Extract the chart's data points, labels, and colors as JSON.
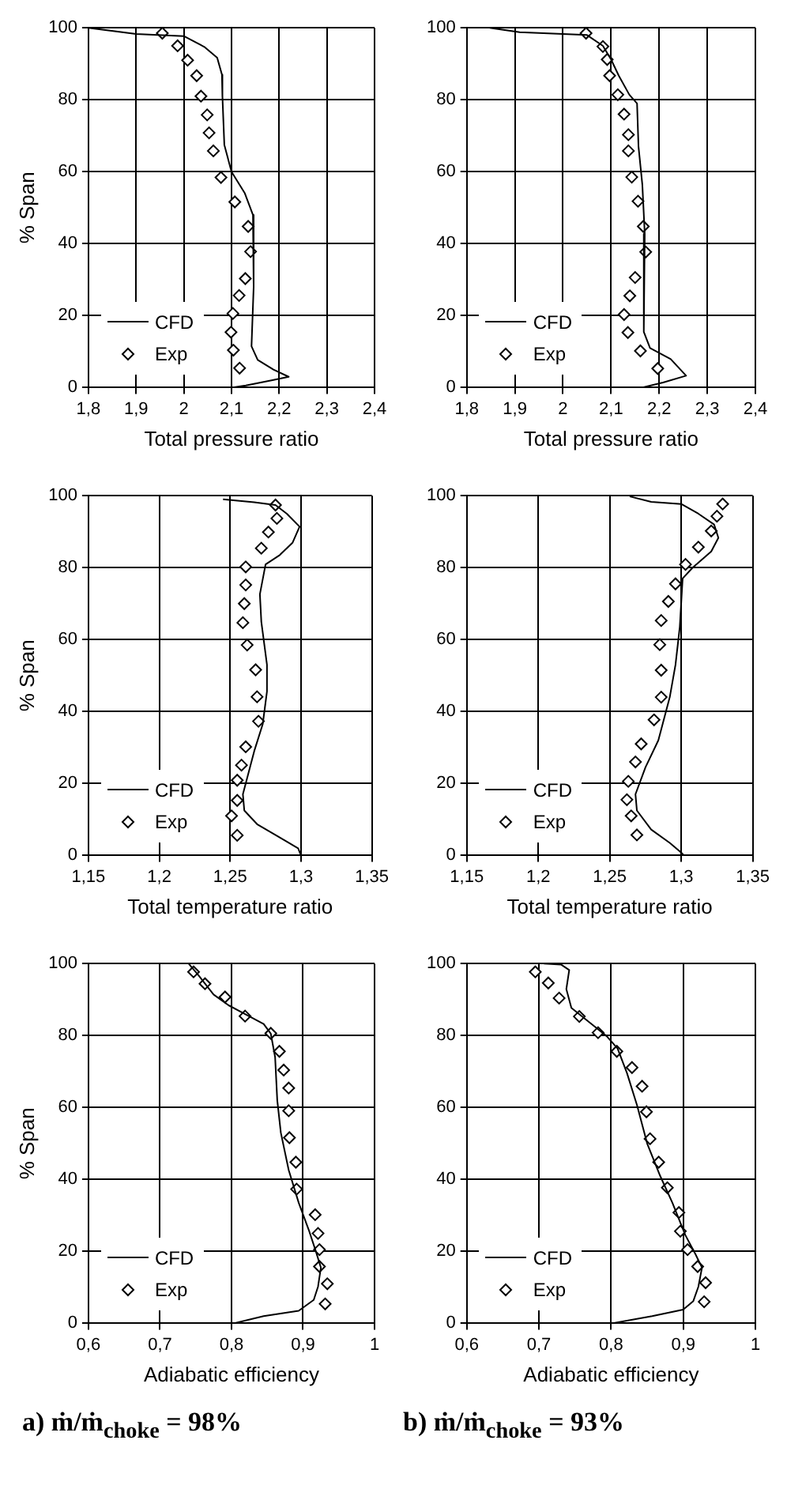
{
  "chart_data": [
    {
      "type": "line",
      "xlabel": "Total pressure ratio",
      "ylabel": "% Span",
      "xlim": [
        1.8,
        2.4
      ],
      "xticks": [
        {
          "value": 1.8,
          "label": "1,8"
        },
        {
          "value": 1.9,
          "label": "1,9"
        },
        {
          "value": 2,
          "label": "2"
        },
        {
          "value": 2.1,
          "label": "2,1"
        },
        {
          "value": 2.2,
          "label": "2,2"
        },
        {
          "value": 2.3,
          "label": "2,3"
        },
        {
          "value": 2.4,
          "label": "2,4"
        }
      ],
      "ylim": [
        0,
        100
      ],
      "yticks": [
        0,
        20,
        40,
        60,
        80,
        100
      ],
      "grid": true,
      "legend": "bottom left",
      "series": [
        {
          "name": "CFD",
          "type": "line",
          "marker": "none",
          "color": "#000000",
          "x": [
            1.8,
            1.9,
            2.0,
            2.043,
            2.07,
            2.08,
            2.081,
            2.085,
            2.1,
            2.128,
            2.145,
            2.148,
            2.145,
            2.142,
            2.155,
            2.188,
            2.22,
            2.184,
            2.13,
            2.1
          ],
          "values": [
            100,
            98.3,
            97.7,
            94.7,
            91.7,
            87,
            81,
            67.5,
            60,
            54,
            48,
            38.7,
            28,
            11.5,
            7.7,
            5,
            3,
            2,
            0.6,
            0
          ]
        },
        {
          "name": "Exp",
          "type": "scatter",
          "marker": "diamond",
          "color": "#000000",
          "x": [
            1.955,
            1.987,
            2.008,
            2.027,
            2.036,
            2.049,
            2.053,
            2.062,
            2.078,
            2.107,
            2.135,
            2.14,
            2.129,
            2.116,
            2.103,
            2.099,
            2.104,
            2.117
          ],
          "values": [
            98.5,
            95,
            91,
            86.7,
            81,
            75.8,
            70.8,
            65.8,
            58.4,
            51.6,
            44.8,
            37.8,
            30.3,
            25.6,
            20.6,
            15.4,
            10.4,
            5.4
          ]
        }
      ]
    },
    {
      "type": "line",
      "xlabel": "Total pressure ratio",
      "xlim": [
        1.8,
        2.4
      ],
      "xticks": [
        {
          "value": 1.8,
          "label": "1,8"
        },
        {
          "value": 1.9,
          "label": "1,9"
        },
        {
          "value": 2,
          "label": "2"
        },
        {
          "value": 2.1,
          "label": "2,1"
        },
        {
          "value": 2.2,
          "label": "2,2"
        },
        {
          "value": 2.3,
          "label": "2,3"
        },
        {
          "value": 2.4,
          "label": "2,4"
        }
      ],
      "ylim": [
        0,
        100
      ],
      "yticks": [
        0,
        20,
        40,
        60,
        80,
        100
      ],
      "grid": true,
      "legend": "bottom left",
      "series": [
        {
          "name": "CFD",
          "type": "line",
          "marker": "none",
          "color": "#000000",
          "x": [
            1.848,
            1.91,
            2.0,
            2.05,
            2.083,
            2.1,
            2.116,
            2.138,
            2.154,
            2.157,
            2.165,
            2.17,
            2.168,
            2.181,
            2.224,
            2.256,
            2.208,
            2.164
          ],
          "values": [
            100,
            98.8,
            98.3,
            98,
            95,
            91.2,
            86.7,
            81.4,
            79,
            67,
            56.4,
            42.7,
            15.5,
            11,
            7.9,
            3.3,
            1.4,
            0
          ]
        },
        {
          "name": "Exp",
          "type": "scatter",
          "marker": "diamond",
          "color": "#000000",
          "x": [
            2.048,
            2.083,
            2.092,
            2.097,
            2.114,
            2.127,
            2.136,
            2.136,
            2.143,
            2.156,
            2.167,
            2.172,
            2.15,
            2.139,
            2.127,
            2.135,
            2.161,
            2.197
          ],
          "values": [
            98.5,
            94.8,
            91.2,
            86.7,
            81.4,
            76,
            70.3,
            65.8,
            58.5,
            51.8,
            44.8,
            37.7,
            30.6,
            25.5,
            20.3,
            15.3,
            10.2,
            5.3
          ]
        }
      ]
    },
    {
      "type": "line",
      "xlabel": "Total temperature ratio",
      "ylabel": "% Span",
      "xlim": [
        1.15,
        1.35
      ],
      "xticks": [
        {
          "value": 1.15,
          "label": "1,15"
        },
        {
          "value": 1.2,
          "label": "1,2"
        },
        {
          "value": 1.25,
          "label": "1,25"
        },
        {
          "value": 1.3,
          "label": "1,3"
        },
        {
          "value": 1.35,
          "label": "1,35"
        }
      ],
      "ylim": [
        0,
        100
      ],
      "yticks": [
        0,
        20,
        40,
        60,
        80,
        100
      ],
      "grid": true,
      "legend": "bottom left",
      "series": [
        {
          "name": "CFD",
          "type": "line",
          "marker": "none",
          "color": "#000000",
          "x": [
            1.245,
            1.267,
            1.282,
            1.29,
            1.299,
            1.294,
            1.285,
            1.275,
            1.271,
            1.272,
            1.276,
            1.276,
            1.273,
            1.267,
            1.262,
            1.259,
            1.26,
            1.269,
            1.285,
            1.298,
            1.3
          ],
          "values": [
            99,
            98.2,
            97.4,
            95,
            91.4,
            86.9,
            83.5,
            80.9,
            72.6,
            65,
            53,
            45.6,
            36.5,
            29,
            21.5,
            17,
            12.5,
            8.7,
            5,
            2,
            0
          ]
        },
        {
          "name": "Exp",
          "type": "scatter",
          "marker": "diamond",
          "color": "#000000",
          "x": [
            1.282,
            1.283,
            1.277,
            1.272,
            1.261,
            1.261,
            1.26,
            1.259,
            1.262,
            1.268,
            1.269,
            1.27,
            1.261,
            1.258,
            1.255,
            1.255,
            1.251,
            1.255
          ],
          "values": [
            97.4,
            93.7,
            89.9,
            85.4,
            80.2,
            75.2,
            70,
            64.7,
            58.5,
            51.6,
            44.1,
            37.3,
            30.2,
            25.1,
            20.9,
            15.3,
            11,
            5.6
          ]
        }
      ]
    },
    {
      "type": "line",
      "xlabel": "Total temperature ratio",
      "xlim": [
        1.15,
        1.35
      ],
      "xticks": [
        {
          "value": 1.15,
          "label": "1,15"
        },
        {
          "value": 1.2,
          "label": "1,2"
        },
        {
          "value": 1.25,
          "label": "1,25"
        },
        {
          "value": 1.3,
          "label": "1,3"
        },
        {
          "value": 1.35,
          "label": "1,35"
        }
      ],
      "ylim": [
        0,
        100
      ],
      "yticks": [
        0,
        20,
        40,
        60,
        80,
        100
      ],
      "grid": true,
      "legend": "bottom left",
      "series": [
        {
          "name": "CFD",
          "type": "line",
          "marker": "none",
          "color": "#000000",
          "x": [
            1.264,
            1.279,
            1.3,
            1.312,
            1.323,
            1.326,
            1.321,
            1.308,
            1.301,
            1.299,
            1.296,
            1.292,
            1.284,
            1.275,
            1.268,
            1.269,
            1.279,
            1.292,
            1.3,
            1.302
          ],
          "values": [
            99.8,
            98.3,
            97.7,
            95,
            92,
            88.3,
            84.5,
            80,
            77,
            63.5,
            53,
            44,
            32,
            24.5,
            17,
            12.5,
            7.2,
            3.5,
            0.8,
            0
          ]
        },
        {
          "name": "Exp",
          "type": "scatter",
          "marker": "diamond",
          "color": "#000000",
          "x": [
            1.329,
            1.325,
            1.321,
            1.312,
            1.303,
            1.296,
            1.291,
            1.286,
            1.285,
            1.286,
            1.286,
            1.281,
            1.272,
            1.268,
            1.263,
            1.262,
            1.265,
            1.269
          ],
          "values": [
            97.7,
            94.3,
            90.2,
            85.7,
            80.9,
            75.5,
            70.6,
            65.3,
            58.6,
            51.5,
            44,
            37.7,
            31,
            26,
            20.6,
            15.5,
            11,
            5.7
          ]
        }
      ]
    },
    {
      "type": "line",
      "xlabel": "Adiabatic efficiency",
      "ylabel": "% Span",
      "xlim": [
        0.6,
        1
      ],
      "xticks": [
        {
          "value": 0.6,
          "label": "0,6"
        },
        {
          "value": 0.7,
          "label": "0,7"
        },
        {
          "value": 0.8,
          "label": "0,8"
        },
        {
          "value": 0.9,
          "label": "0,9"
        },
        {
          "value": 1,
          "label": "1"
        }
      ],
      "ylim": [
        0,
        100
      ],
      "yticks": [
        0,
        20,
        40,
        60,
        80,
        100
      ],
      "grid": true,
      "legend": "bottom left",
      "annotations": [
        "a) ṁ/ṁ$_{choke}$ = 98%"
      ],
      "series": [
        {
          "name": "CFD",
          "type": "line",
          "marker": "none",
          "color": "#000000",
          "x": [
            0.74,
            0.754,
            0.775,
            0.796,
            0.817,
            0.845,
            0.855,
            0.861,
            0.864,
            0.869,
            0.88,
            0.894,
            0.908,
            0.918,
            0.925,
            0.921,
            0.915,
            0.894,
            0.845,
            0.803
          ],
          "values": [
            100,
            96.7,
            91.4,
            88.4,
            86.2,
            83.2,
            80.5,
            74,
            62,
            53,
            42.6,
            33.5,
            26,
            20,
            15.5,
            10.2,
            6.5,
            3.5,
            2,
            0
          ]
        },
        {
          "name": "Exp",
          "type": "scatter",
          "marker": "diamond",
          "color": "#000000",
          "x": [
            0.747,
            0.763,
            0.791,
            0.819,
            0.855,
            0.867,
            0.873,
            0.88,
            0.88,
            0.881,
            0.89,
            0.891,
            0.917,
            0.921,
            0.923,
            0.923,
            0.934,
            0.931
          ],
          "values": [
            97.7,
            94.4,
            90.7,
            85.4,
            80.6,
            75.6,
            70.4,
            65.4,
            59.1,
            51.6,
            44.8,
            37.3,
            30.2,
            25,
            20.5,
            15.8,
            11,
            5.4
          ]
        }
      ]
    },
    {
      "type": "line",
      "xlabel": "Adiabatic efficiency",
      "xlim": [
        0.6,
        1
      ],
      "xticks": [
        {
          "value": 0.6,
          "label": "0,6"
        },
        {
          "value": 0.7,
          "label": "0,7"
        },
        {
          "value": 0.8,
          "label": "0,8"
        },
        {
          "value": 0.9,
          "label": "0,9"
        },
        {
          "value": 1,
          "label": "1"
        }
      ],
      "ylim": [
        0,
        100
      ],
      "yticks": [
        0,
        20,
        40,
        60,
        80,
        100
      ],
      "grid": true,
      "legend": "bottom left",
      "annotations": [
        "b) ṁ/ṁ$_{choke}$ = 93%"
      ],
      "series": [
        {
          "name": "CFD",
          "type": "line",
          "marker": "none",
          "color": "#000000",
          "x": [
            0.707,
            0.731,
            0.742,
            0.738,
            0.745,
            0.773,
            0.794,
            0.809,
            0.822,
            0.836,
            0.85,
            0.868,
            0.885,
            0.903,
            0.917,
            0.926,
            0.921,
            0.914,
            0.9,
            0.857,
            0.801
          ],
          "values": [
            100,
            99.7,
            98.2,
            92.9,
            87.7,
            83.2,
            79.8,
            76.4,
            69.6,
            60.6,
            50,
            41,
            33.5,
            24.5,
            19.2,
            15.5,
            10.2,
            6.2,
            3.8,
            2,
            0
          ]
        },
        {
          "name": "Exp",
          "type": "scatter",
          "marker": "diamond",
          "color": "#000000",
          "x": [
            0.695,
            0.713,
            0.728,
            0.756,
            0.782,
            0.808,
            0.829,
            0.843,
            0.849,
            0.854,
            0.866,
            0.878,
            0.894,
            0.896,
            0.906,
            0.92,
            0.931,
            0.929
          ],
          "values": [
            97.7,
            94.6,
            90.4,
            85.3,
            80.8,
            75.6,
            71.1,
            65.9,
            58.8,
            51.3,
            44.8,
            37.7,
            30.8,
            25.6,
            20.5,
            15.8,
            11.3,
            6
          ]
        }
      ]
    }
  ]
}
